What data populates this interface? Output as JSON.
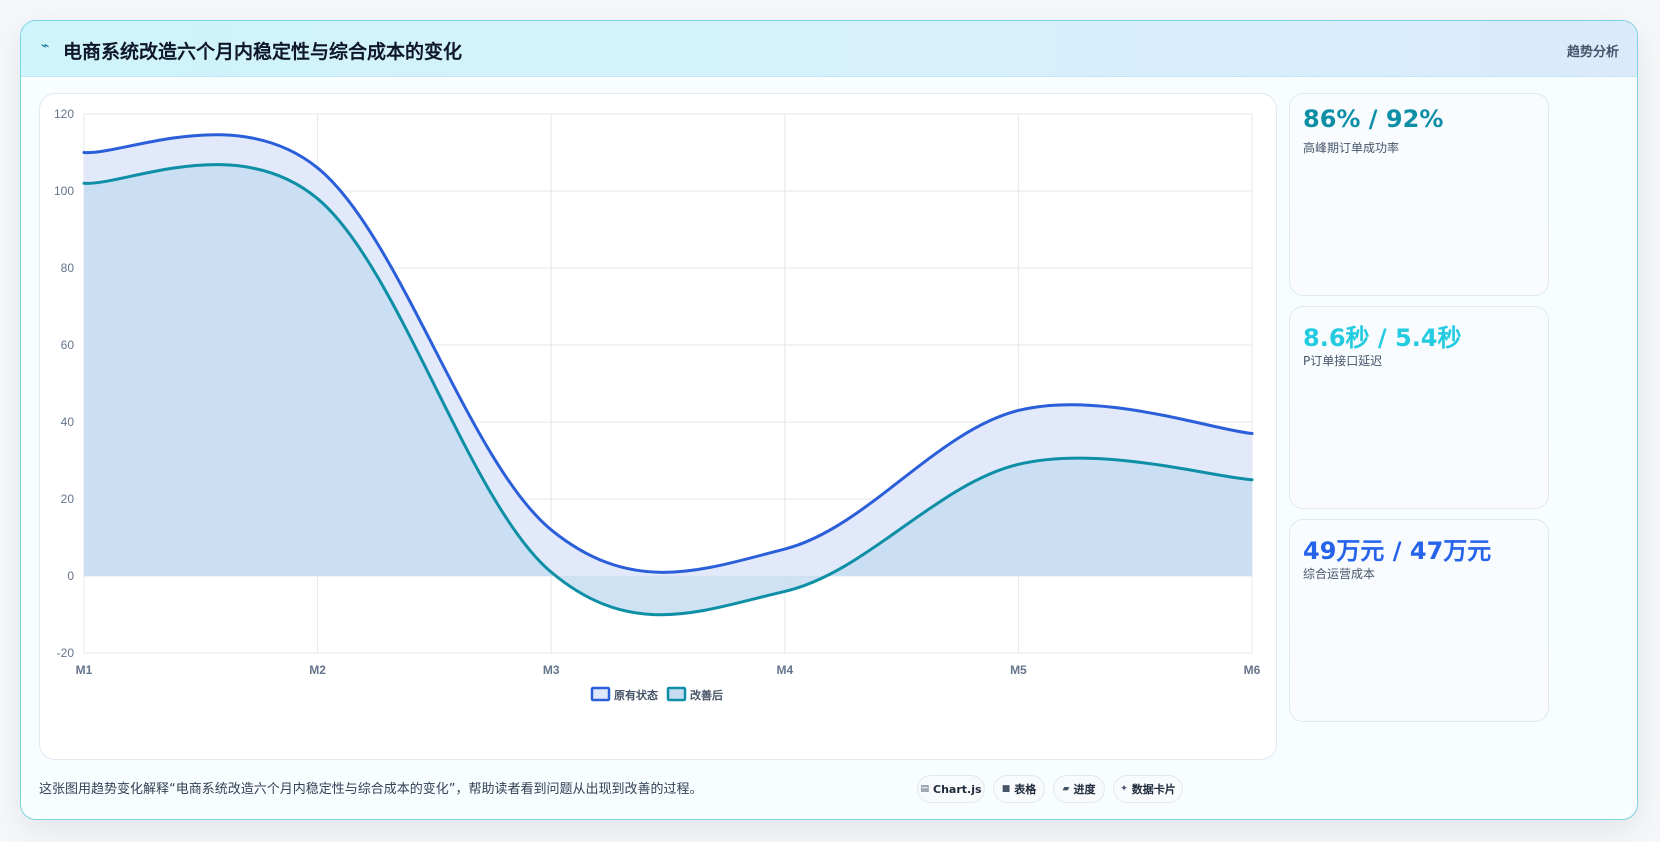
{
  "header": {
    "icon": "trend-line-icon",
    "title": "电商系统改造六个月内稳定性与综合成本的变化",
    "tag": "趋势分析"
  },
  "stats": [
    {
      "value": "86% / 92%",
      "label": "高峰期订单成功率",
      "color": "#0e8fa6"
    },
    {
      "value": "8.6秒 / 5.4秒",
      "label": "P订单接口延迟",
      "color": "#22cbe0"
    },
    {
      "value": "49万元 / 47万元",
      "label": "综合运营成本",
      "color": "#2563eb"
    }
  ],
  "footer": {
    "description": "这张图用趋势变化解释“电商系统改造六个月内稳定性与综合成本的变化”，帮助读者看到问题从出现到改善的过程。",
    "chips": [
      {
        "icon": "chart-icon",
        "icon_glyph": "▤",
        "label": "Chart.js"
      },
      {
        "icon": "table-icon",
        "icon_glyph": "■",
        "label": "表格"
      },
      {
        "icon": "progress-icon",
        "icon_glyph": "▰",
        "label": "进度"
      },
      {
        "icon": "sparkle-icon",
        "icon_glyph": "✦",
        "label": "数据卡片"
      }
    ]
  },
  "chart_data": {
    "type": "area",
    "categories": [
      "M1",
      "M2",
      "M3",
      "M4",
      "M5",
      "M6"
    ],
    "x": [
      "M1",
      "M2",
      "M3",
      "M4",
      "M5",
      "M6"
    ],
    "ylim": [
      -20,
      120
    ],
    "yticks": [
      -20,
      0,
      20,
      40,
      60,
      80,
      100,
      120
    ],
    "grid": true,
    "legend_position": "bottom",
    "series": [
      {
        "name": "原有状态",
        "values": [
          110,
          106,
          12,
          7,
          43,
          37
        ],
        "color": "#2b5fd9",
        "fill": "#dfe8fb"
      },
      {
        "name": "改善后",
        "values": [
          102,
          98,
          1,
          -4,
          29,
          25
        ],
        "color": "#0e8fa6",
        "fill": "#c6ddf1"
      }
    ]
  }
}
